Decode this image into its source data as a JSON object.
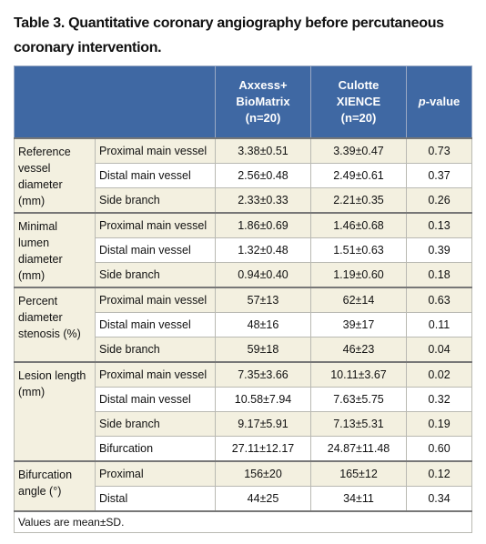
{
  "header": {
    "title": "Table 3. Quantitative coronary angiography before percutaneous coronary intervention."
  },
  "table": {
    "columns": [
      {
        "lines": [
          "Axxess+",
          "BioMatrix",
          "(n=20)"
        ]
      },
      {
        "lines": [
          "Culotte",
          "XIENCE",
          "(n=20)"
        ]
      },
      {
        "lines": [
          "p-value"
        ]
      }
    ],
    "groups": [
      {
        "label": "Reference vessel diameter (mm)",
        "rows": [
          {
            "name": "Proximal main vessel",
            "values": [
              "3.38±0.51",
              "3.39±0.47",
              "0.73"
            ]
          },
          {
            "name": "Distal main vessel",
            "values": [
              "2.56±0.48",
              "2.49±0.61",
              "0.37"
            ]
          },
          {
            "name": "Side branch",
            "values": [
              "2.33±0.33",
              "2.21±0.35",
              "0.26"
            ]
          }
        ]
      },
      {
        "label": "Minimal lumen diameter (mm)",
        "rows": [
          {
            "name": "Proximal main vessel",
            "values": [
              "1.86±0.69",
              "1.46±0.68",
              "0.13"
            ]
          },
          {
            "name": "Distal main vessel",
            "values": [
              "1.32±0.48",
              "1.51±0.63",
              "0.39"
            ]
          },
          {
            "name": "Side branch",
            "values": [
              "0.94±0.40",
              "1.19±0.60",
              "0.18"
            ]
          }
        ]
      },
      {
        "label": "Percent diameter stenosis (%)",
        "rows": [
          {
            "name": "Proximal main vessel",
            "values": [
              "57±13",
              "62±14",
              "0.63"
            ]
          },
          {
            "name": "Distal main vessel",
            "values": [
              "48±16",
              "39±17",
              "0.11"
            ]
          },
          {
            "name": "Side branch",
            "values": [
              "59±18",
              "46±23",
              "0.04"
            ]
          }
        ]
      },
      {
        "label": "Lesion length (mm)",
        "rows": [
          {
            "name": "Proximal main vessel",
            "values": [
              "7.35±3.66",
              "10.11±3.67",
              "0.02"
            ]
          },
          {
            "name": "Distal main vessel",
            "values": [
              "10.58±7.94",
              "7.63±5.75",
              "0.32"
            ]
          },
          {
            "name": "Side branch",
            "values": [
              "9.17±5.91",
              "7.13±5.31",
              "0.19"
            ]
          },
          {
            "name": "Bifurcation",
            "values": [
              "27.11±12.17",
              "24.87±11.48",
              "0.60"
            ]
          }
        ]
      },
      {
        "label": "Bifurcation angle (°)",
        "rows": [
          {
            "name": "Proximal",
            "values": [
              "156±20",
              "165±12",
              "0.12"
            ]
          },
          {
            "name": "Distal",
            "values": [
              "44±25",
              "34±11",
              "0.34"
            ]
          }
        ]
      }
    ],
    "footnote": "Values are mean±SD."
  }
}
